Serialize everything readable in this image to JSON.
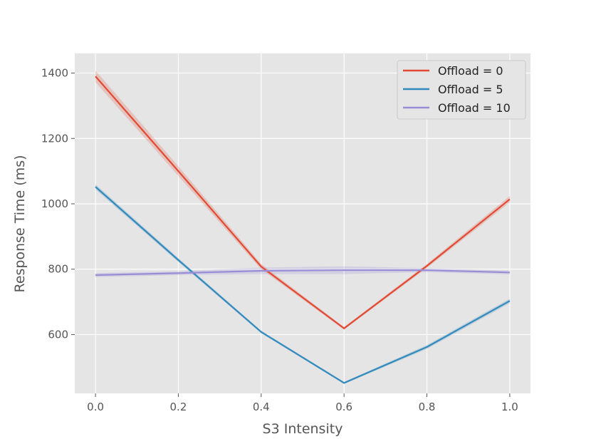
{
  "chart_data": {
    "type": "line",
    "title": "",
    "xlabel": "S3 Intensity",
    "ylabel": "Response Time (ms)",
    "x": [
      0.0,
      0.2,
      0.4,
      0.6,
      0.8,
      1.0
    ],
    "xlim": [
      -0.05,
      1.05
    ],
    "ylim": [
      420,
      1460
    ],
    "xticks": [
      0.0,
      0.2,
      0.4,
      0.6,
      0.8,
      1.0
    ],
    "xtick_labels": [
      "0.0",
      "0.2",
      "0.4",
      "0.6",
      "0.8",
      "1.0"
    ],
    "yticks": [
      600,
      800,
      1000,
      1200,
      1400
    ],
    "ytick_labels": [
      "600",
      "800",
      "1000",
      "1200",
      "1400"
    ],
    "grid": true,
    "legend_position": "top-right",
    "series": [
      {
        "name": "Offload = 0",
        "color": "#E24A33",
        "values": [
          1390,
          1100,
          808,
          619,
          810,
          1014
        ],
        "lower": [
          1372,
          1085,
          800,
          615,
          804,
          1004
        ],
        "upper": [
          1408,
          1115,
          816,
          623,
          816,
          1024
        ]
      },
      {
        "name": "Offload = 5",
        "color": "#348ABD",
        "values": [
          1052,
          828,
          608,
          452,
          562,
          703
        ],
        "lower": [
          1044,
          822,
          604,
          449,
          556,
          696
        ],
        "upper": [
          1060,
          834,
          612,
          455,
          568,
          710
        ]
      },
      {
        "name": "Offload = 10",
        "color": "#988ED5",
        "values": [
          782,
          788,
          795,
          797,
          797,
          790
        ],
        "lower": [
          776,
          782,
          785,
          785,
          791,
          784
        ],
        "upper": [
          788,
          794,
          805,
          809,
          803,
          796
        ]
      }
    ]
  }
}
